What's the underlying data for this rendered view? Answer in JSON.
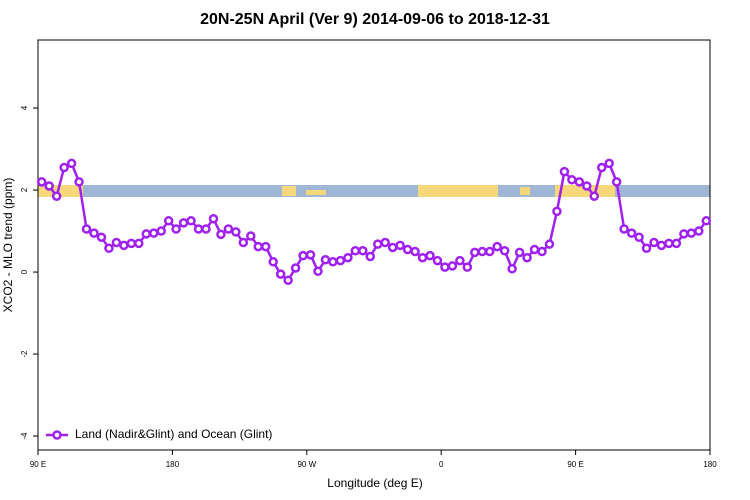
{
  "chart_data": {
    "type": "line",
    "title": "20N-25N April (Ver 9)   2014-09-06 to 2018-12-31",
    "x_label": "Longitude (deg E)",
    "y_label": "XCO2 - MLO trend (ppm)",
    "xlim": [
      90,
      540
    ],
    "ylim": [
      -4.34,
      5.66
    ],
    "xticks": [
      {
        "value": 90,
        "label": "90 E"
      },
      180,
      {
        "value": 270,
        "label": "90 W"
      },
      {
        "value": 360,
        "label": "0"
      },
      {
        "value": 450,
        "label": "90 E"
      },
      {
        "value": 540,
        "label": "180"
      }
    ],
    "yticks": [
      -4,
      -2,
      0,
      2,
      4
    ],
    "legend": "bottomleft",
    "x": [
      92.5,
      97.5,
      102.5,
      107.5,
      112.5,
      117.5,
      122.5,
      127.5,
      132.5,
      137.5,
      142.5,
      147.5,
      152.5,
      157.5,
      162.5,
      167.5,
      172.5,
      177.5,
      182.5,
      187.5,
      192.5,
      197.5,
      202.5,
      207.5,
      212.5,
      217.5,
      222.5,
      227.5,
      232.5,
      237.5,
      242.5,
      247.5,
      252.5,
      257.5,
      262.5,
      267.5,
      272.5,
      277.5,
      282.5,
      287.5,
      292.5,
      297.5,
      302.5,
      307.5,
      312.5,
      317.5,
      322.5,
      327.5,
      332.5,
      337.5,
      342.5,
      347.5,
      352.5,
      357.5,
      362.5,
      367.5,
      372.5,
      377.5,
      382.5,
      387.5,
      392.5,
      397.5,
      402.5,
      407.5,
      412.5,
      417.5,
      422.5,
      427.5,
      432.5,
      437.5,
      442.5,
      447.5,
      452.5,
      457.5,
      462.5,
      467.5,
      472.5,
      477.5,
      482.5,
      487.5,
      492.5,
      497.5,
      502.5,
      507.5,
      512.5,
      517.5,
      522.5,
      527.5,
      532.5,
      537.5
    ],
    "series": [
      {
        "name": "Land (Nadir&Glint) and Ocean (Glint)",
        "color": "#a020f0",
        "values": [
          2.2,
          2.1,
          1.85,
          2.55,
          2.65,
          2.2,
          1.05,
          0.95,
          0.85,
          0.58,
          0.72,
          0.65,
          0.7,
          0.7,
          0.93,
          0.95,
          1.0,
          1.25,
          1.05,
          1.2,
          1.25,
          1.05,
          1.05,
          1.3,
          0.92,
          1.05,
          0.98,
          0.72,
          0.88,
          0.62,
          0.62,
          0.25,
          -0.05,
          -0.2,
          0.1,
          0.4,
          0.42,
          0.02,
          0.3,
          0.25,
          0.28,
          0.35,
          0.52,
          0.52,
          0.38,
          0.68,
          0.72,
          0.6,
          0.65,
          0.55,
          0.5,
          0.35,
          0.4,
          0.28,
          0.12,
          0.15,
          0.28,
          0.12,
          0.48,
          0.5,
          0.5,
          0.62,
          0.52,
          0.08,
          0.48,
          0.35,
          0.55,
          0.5,
          0.68,
          1.48,
          2.45,
          2.25,
          2.2,
          2.1,
          1.85,
          2.55,
          2.65,
          2.2,
          1.05,
          0.95,
          0.85,
          0.58,
          0.72,
          0.65,
          0.7,
          0.7,
          0.93,
          0.95,
          1.0,
          1.25
        ]
      }
    ]
  }
}
